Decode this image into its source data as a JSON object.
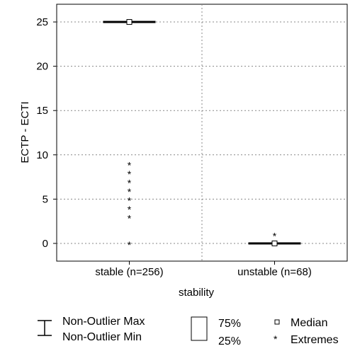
{
  "chart_data": {
    "type": "box",
    "ylabel": "ECTP - ECTI",
    "xlabel": "stability",
    "ylim": [
      -2,
      27
    ],
    "yticks": [
      0,
      5,
      10,
      15,
      20,
      25
    ],
    "grid": true,
    "categories": [
      "stable (n=256)",
      "unstable (n=68)"
    ],
    "groups": [
      {
        "median": 25,
        "q1": 25,
        "q3": 25,
        "whisker_low": 25,
        "whisker_high": 25,
        "extremes": [
          0,
          3,
          4,
          5,
          6,
          7,
          8,
          9
        ]
      },
      {
        "median": 0,
        "q1": 0,
        "q3": 0,
        "whisker_low": 0,
        "whisker_high": 0,
        "extremes": [
          1
        ]
      }
    ],
    "extreme_symbol": "*",
    "legend": {
      "whisker_top": "Non-Outlier Max",
      "whisker_bottom": "Non-Outlier Min",
      "box_top": "75%",
      "box_bottom": "25%",
      "median": "Median",
      "extremes": "Extremes"
    }
  }
}
